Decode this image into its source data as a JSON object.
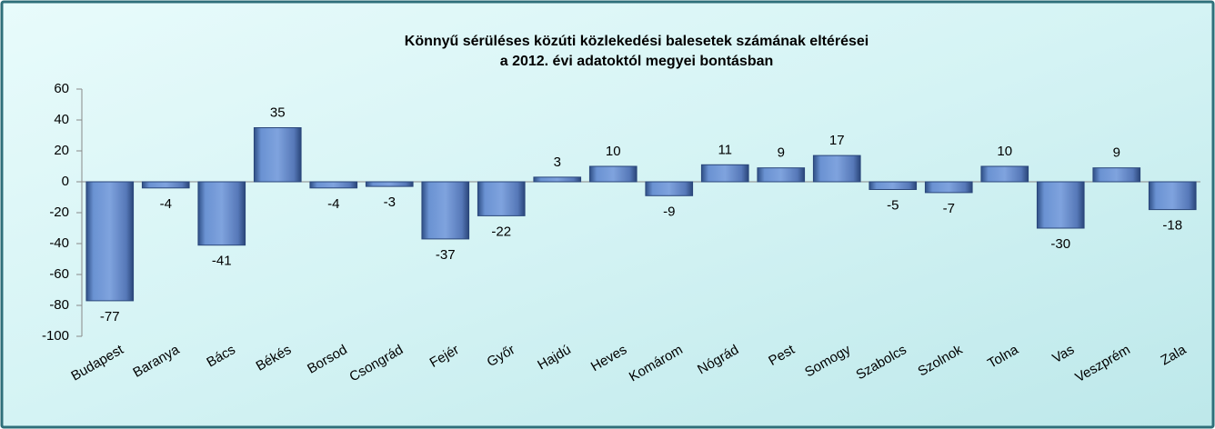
{
  "chart_data": {
    "type": "bar",
    "title": [
      "Könnyű sérüléses közúti közlekedési balesetek számának eltérései",
      "a 2012. évi adatoktól megyei bontásban"
    ],
    "categories": [
      "Budapest",
      "Baranya",
      "Bács",
      "Békés",
      "Borsod",
      "Csongrád",
      "Fejér",
      "Győr",
      "Hajdú",
      "Heves",
      "Komárom",
      "Nógrád",
      "Pest",
      "Somogy",
      "Szabolcs",
      "Szolnok",
      "Tolna",
      "Vas",
      "Veszprém",
      "Zala"
    ],
    "values": [
      -77,
      -4,
      -41,
      35,
      -4,
      -3,
      -37,
      -22,
      3,
      10,
      -9,
      11,
      9,
      17,
      -5,
      -7,
      10,
      -30,
      9,
      -18
    ],
    "color": "#4f79bd",
    "ylim": [
      -100,
      60
    ],
    "yticks": [
      60,
      40,
      20,
      0,
      -20,
      -40,
      -60,
      -80,
      -100
    ],
    "grid": false
  }
}
